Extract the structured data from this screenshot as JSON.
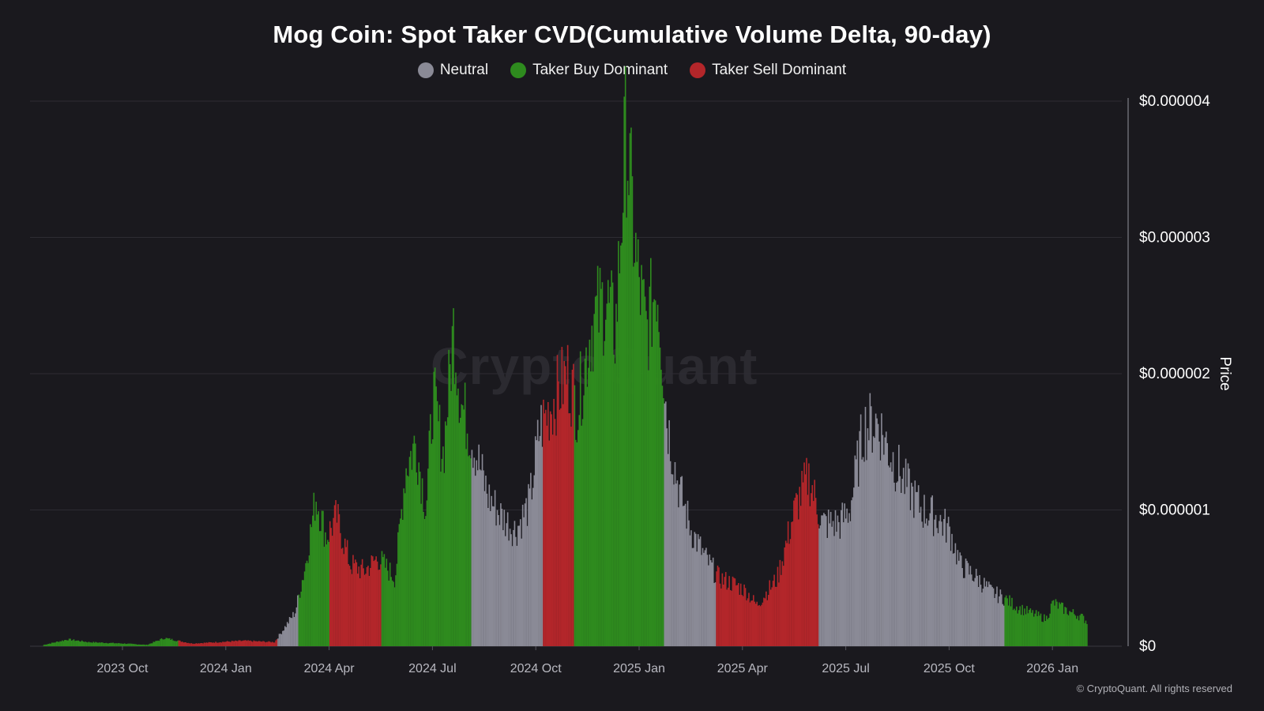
{
  "chart_data": {
    "type": "bar",
    "title": "Mog Coin: Spot Taker CVD(Cumulative Volume Delta, 90-day)",
    "ylabel": "Price",
    "ylim": [
      0,
      4e-06
    ],
    "y_ticks": [
      "$0",
      "$0.000001",
      "$0.000002",
      "$0.000003",
      "$0.000004"
    ],
    "y_tick_values": [
      0,
      1e-06,
      2e-06,
      3e-06,
      4e-06
    ],
    "x_ticks": [
      "2023 Oct",
      "2024 Jan",
      "2024 Apr",
      "2024 Jul",
      "2024 Oct",
      "2025 Jan",
      "2025 Apr",
      "2025 Jul",
      "2025 Oct",
      "2026 Jan"
    ],
    "x_tick_positions": [
      1.0,
      4.0,
      7.0,
      10.0,
      13.0,
      16.0,
      19.0,
      22.0,
      25.0,
      28.0
    ],
    "x_start_month": -1.65,
    "x_end_month": 30.0,
    "legend": [
      {
        "label": "Neutral",
        "color": "#8a8a96"
      },
      {
        "label": "Taker Buy Dominant",
        "color": "#2e8b1e"
      },
      {
        "label": "Taker Sell Dominant",
        "color": "#b3262a"
      }
    ],
    "price_keyframes_month_value": [
      [
        -1.3,
        1e-08
      ],
      [
        -0.6,
        5e-08
      ],
      [
        0.0,
        3e-08
      ],
      [
        1.0,
        2e-08
      ],
      [
        1.7,
        1e-08
      ],
      [
        2.2,
        6e-08
      ],
      [
        3.0,
        2e-08
      ],
      [
        4.5,
        4e-08
      ],
      [
        5.4,
        3e-08
      ],
      [
        6.0,
        2.5e-07
      ],
      [
        6.3,
        6e-07
      ],
      [
        6.6,
        1.1e-06
      ],
      [
        6.9,
        8e-07
      ],
      [
        7.2,
        9.5e-07
      ],
      [
        7.6,
        6e-07
      ],
      [
        8.0,
        5.5e-07
      ],
      [
        8.4,
        6.5e-07
      ],
      [
        8.9,
        5e-07
      ],
      [
        9.2,
        1.3e-06
      ],
      [
        9.5,
        1.5e-06
      ],
      [
        9.8,
        1e-06
      ],
      [
        10.0,
        1.85e-06
      ],
      [
        10.3,
        1.4e-06
      ],
      [
        10.6,
        2.35e-06
      ],
      [
        10.8,
        1.8e-06
      ],
      [
        11.1,
        1.55e-06
      ],
      [
        11.6,
        1.1e-06
      ],
      [
        12.0,
        9.5e-07
      ],
      [
        12.4,
        8.5e-07
      ],
      [
        12.8,
        1.05e-06
      ],
      [
        13.1,
        1.6e-06
      ],
      [
        13.5,
        1.8e-06
      ],
      [
        13.9,
        2e-06
      ],
      [
        14.2,
        1.75e-06
      ],
      [
        14.6,
        2.35e-06
      ],
      [
        15.0,
        2.55e-06
      ],
      [
        15.3,
        2.3e-06
      ],
      [
        15.6,
        3.8e-06
      ],
      [
        15.9,
        2.8e-06
      ],
      [
        16.2,
        2.3e-06
      ],
      [
        16.5,
        2.7e-06
      ],
      [
        16.8,
        1.65e-06
      ],
      [
        17.1,
        1.2e-06
      ],
      [
        17.5,
        8.5e-07
      ],
      [
        17.9,
        6.5e-07
      ],
      [
        18.3,
        5e-07
      ],
      [
        18.8,
        4.5e-07
      ],
      [
        19.1,
        4e-07
      ],
      [
        19.4,
        3e-07
      ],
      [
        20.0,
        5e-07
      ],
      [
        20.5,
        1e-06
      ],
      [
        20.9,
        1.25e-06
      ],
      [
        21.3,
        9e-07
      ],
      [
        21.8,
        9e-07
      ],
      [
        22.1,
        1e-06
      ],
      [
        22.5,
        1.6e-06
      ],
      [
        22.9,
        1.65e-06
      ],
      [
        23.3,
        1.4e-06
      ],
      [
        23.7,
        1.2e-06
      ],
      [
        24.2,
        1e-06
      ],
      [
        24.6,
        9.5e-07
      ],
      [
        25.0,
        8.5e-07
      ],
      [
        25.3,
        6e-07
      ],
      [
        25.8,
        5e-07
      ],
      [
        26.2,
        4e-07
      ],
      [
        26.6,
        3.5e-07
      ],
      [
        27.0,
        2.8e-07
      ],
      [
        27.4,
        2.4e-07
      ],
      [
        27.8,
        2e-07
      ],
      [
        28.0,
        3.2e-07
      ],
      [
        28.4,
        2.6e-07
      ],
      [
        28.8,
        2.2e-07
      ],
      [
        29.0,
        1.8e-07
      ]
    ],
    "regimes_month_start_end": [
      {
        "start": -1.3,
        "end": 2.6,
        "regime": "Taker Buy Dominant"
      },
      {
        "start": 2.6,
        "end": 5.5,
        "regime": "Taker Sell Dominant"
      },
      {
        "start": 5.5,
        "end": 6.1,
        "regime": "Neutral"
      },
      {
        "start": 6.1,
        "end": 7.0,
        "regime": "Taker Buy Dominant"
      },
      {
        "start": 7.0,
        "end": 8.5,
        "regime": "Taker Sell Dominant"
      },
      {
        "start": 8.5,
        "end": 11.1,
        "regime": "Taker Buy Dominant"
      },
      {
        "start": 11.1,
        "end": 13.2,
        "regime": "Neutral"
      },
      {
        "start": 13.2,
        "end": 14.1,
        "regime": "Taker Sell Dominant"
      },
      {
        "start": 14.1,
        "end": 16.7,
        "regime": "Taker Buy Dominant"
      },
      {
        "start": 16.7,
        "end": 18.2,
        "regime": "Neutral"
      },
      {
        "start": 18.2,
        "end": 21.2,
        "regime": "Taker Sell Dominant"
      },
      {
        "start": 21.2,
        "end": 26.6,
        "regime": "Neutral"
      },
      {
        "start": 26.6,
        "end": 29.1,
        "regime": "Taker Buy Dominant"
      }
    ]
  },
  "watermark": "CryptoQuant",
  "copyright": "© CryptoQuant. All rights reserved"
}
